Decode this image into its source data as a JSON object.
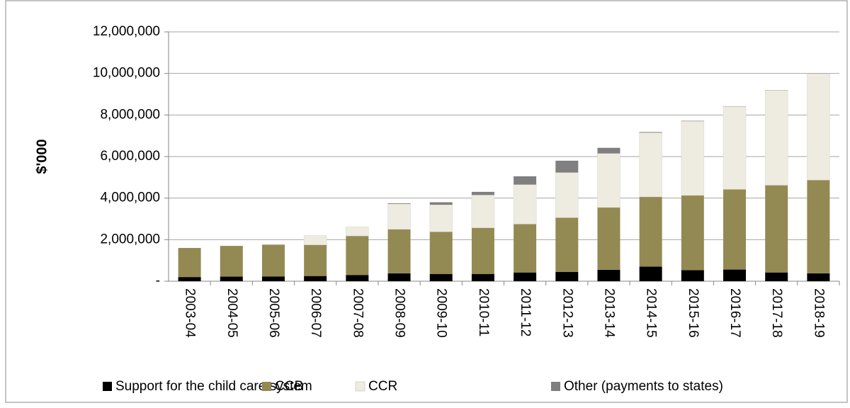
{
  "chart_data": {
    "type": "stacked-bar",
    "y_label": "$'000",
    "categories": [
      "2003-04",
      "2004-05",
      "2005-06",
      "2006-07",
      "2007-08",
      "2008-09",
      "2009-10",
      "2010-11",
      "2011-12",
      "2012-13",
      "2013-14",
      "2014-15",
      "2015-16",
      "2016-17",
      "2017-18",
      "2018-19"
    ],
    "series": [
      {
        "name": "Support for the child care system",
        "color": "#000000",
        "values": [
          200000,
          220000,
          230000,
          250000,
          300000,
          380000,
          350000,
          350000,
          420000,
          450000,
          550000,
          700000,
          530000,
          560000,
          420000,
          380000
        ]
      },
      {
        "name": "CCB",
        "color": "#938953",
        "values": [
          1400000,
          1480000,
          1530000,
          1500000,
          1880000,
          2120000,
          2030000,
          2220000,
          2330000,
          2610000,
          3000000,
          3360000,
          3600000,
          3860000,
          4200000,
          4490000
        ]
      },
      {
        "name": "CCR",
        "color": "#eeece1",
        "values": [
          0,
          0,
          0,
          450000,
          440000,
          1220000,
          1300000,
          1580000,
          1900000,
          2170000,
          2600000,
          3090000,
          3570000,
          3990000,
          4570000,
          5110000
        ]
      },
      {
        "name": "Other (payments to states)",
        "color": "#7f7f7f",
        "values": [
          0,
          0,
          0,
          0,
          0,
          30000,
          120000,
          150000,
          400000,
          570000,
          270000,
          30000,
          20000,
          10000,
          10000,
          0
        ]
      }
    ],
    "ylim": [
      0,
      12000000
    ],
    "yticks": [
      {
        "value": 0,
        "label": "-"
      },
      {
        "value": 2000000,
        "label": "2,000,000"
      },
      {
        "value": 4000000,
        "label": "4,000,000"
      },
      {
        "value": 6000000,
        "label": "6,000,000"
      },
      {
        "value": 8000000,
        "label": "8,000,000"
      },
      {
        "value": 10000000,
        "label": "10,000,000"
      },
      {
        "value": 12000000,
        "label": "12,000,000"
      }
    ],
    "grid": true
  }
}
